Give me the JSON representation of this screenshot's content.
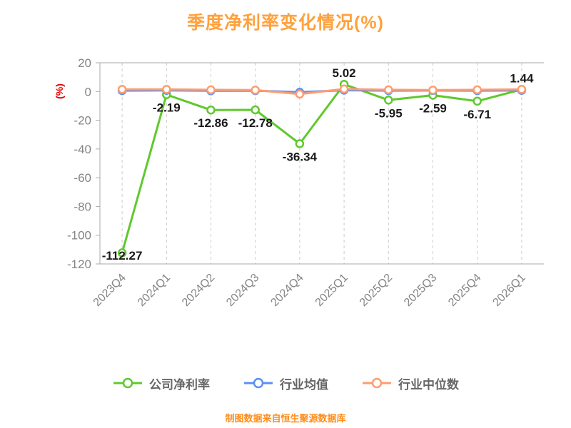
{
  "title": "季度净利率变化情况(%)",
  "footer": "制图数据来自恒生聚源数据库",
  "colors": {
    "title": "#FFA13C",
    "footer": "#FF8D1A",
    "y_axis_unit": "#E60000",
    "tick_label": "#848484",
    "axis_line": "#AAAAAA",
    "grid_line": "#CCCCCC",
    "data_label": "#1A1A1A",
    "legend_label": "#666666"
  },
  "chart_data": {
    "type": "line",
    "title": "季度净利率变化情况(%)",
    "ylabel": "(%)",
    "ylim": [
      -120,
      20
    ],
    "yticks": [
      20,
      0,
      -20,
      -40,
      -60,
      -80,
      -100,
      -120
    ],
    "grid": "vertical-dashed",
    "legend_position": "bottom",
    "categories": [
      "2023Q4",
      "2024Q1",
      "2024Q2",
      "2024Q3",
      "2024Q4",
      "2025Q1",
      "2025Q2",
      "2025Q3",
      "2025Q4",
      "2026Q1"
    ],
    "series": [
      {
        "name": "公司净利率",
        "color": "#5FC92E",
        "show_labels": true,
        "values": [
          -112.27,
          -2.19,
          -12.86,
          -12.78,
          -36.34,
          5.02,
          -5.95,
          -2.59,
          -6.71,
          1.44
        ]
      },
      {
        "name": "行业均值",
        "color": "#5B8FF9",
        "show_labels": false,
        "values": [
          0.6,
          0.8,
          0.5,
          0.6,
          -0.5,
          0.9,
          0.6,
          0.7,
          0.6,
          0.8
        ]
      },
      {
        "name": "行业中位数",
        "color": "#FF9D6F",
        "show_labels": false,
        "values": [
          1.5,
          1.5,
          1.2,
          1.0,
          -1.8,
          1.8,
          1.2,
          1.0,
          1.2,
          1.5
        ]
      }
    ]
  }
}
